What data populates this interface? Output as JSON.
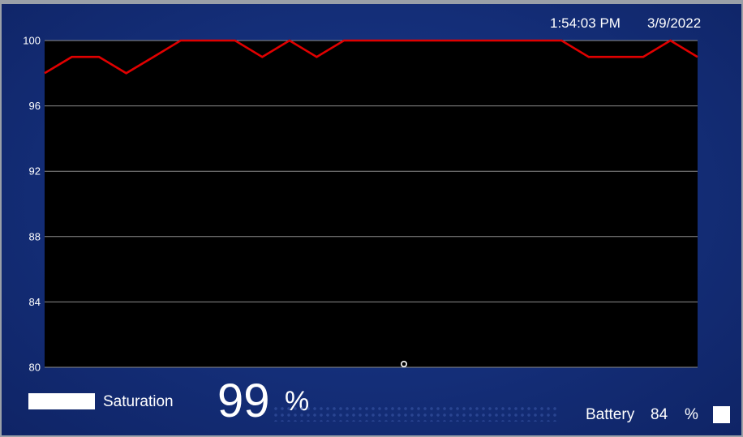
{
  "header": {
    "time": "1:54:03 PM",
    "date": "3/9/2022"
  },
  "colors": {
    "background": "#142e78",
    "plot_background": "#000000",
    "gridline": "#8c8c8c",
    "series_line": "#e00000",
    "text": "#ffffff"
  },
  "chart_data": {
    "type": "line",
    "ylim": [
      80,
      100
    ],
    "y_ticks": [
      "80",
      "84",
      "88",
      "92",
      "96",
      "100"
    ],
    "grid": true,
    "x": [
      0,
      1,
      2,
      3,
      4,
      5,
      6,
      7,
      8,
      9,
      10,
      11,
      12,
      13,
      14,
      15,
      16,
      17,
      18,
      19,
      20,
      21,
      22,
      23,
      24
    ],
    "series": [
      {
        "values": [
          98,
          99,
          99,
          98,
          99,
          100,
          100,
          100,
          99,
          100,
          99,
          100,
          100,
          100,
          100,
          100,
          100,
          100,
          100,
          100,
          99,
          99,
          99,
          100,
          99
        ]
      }
    ]
  },
  "footer": {
    "legend_label": "Saturation",
    "saturation_value": "99",
    "saturation_unit": "%",
    "battery_label": "Battery",
    "battery_value": "84",
    "battery_unit": "%"
  }
}
